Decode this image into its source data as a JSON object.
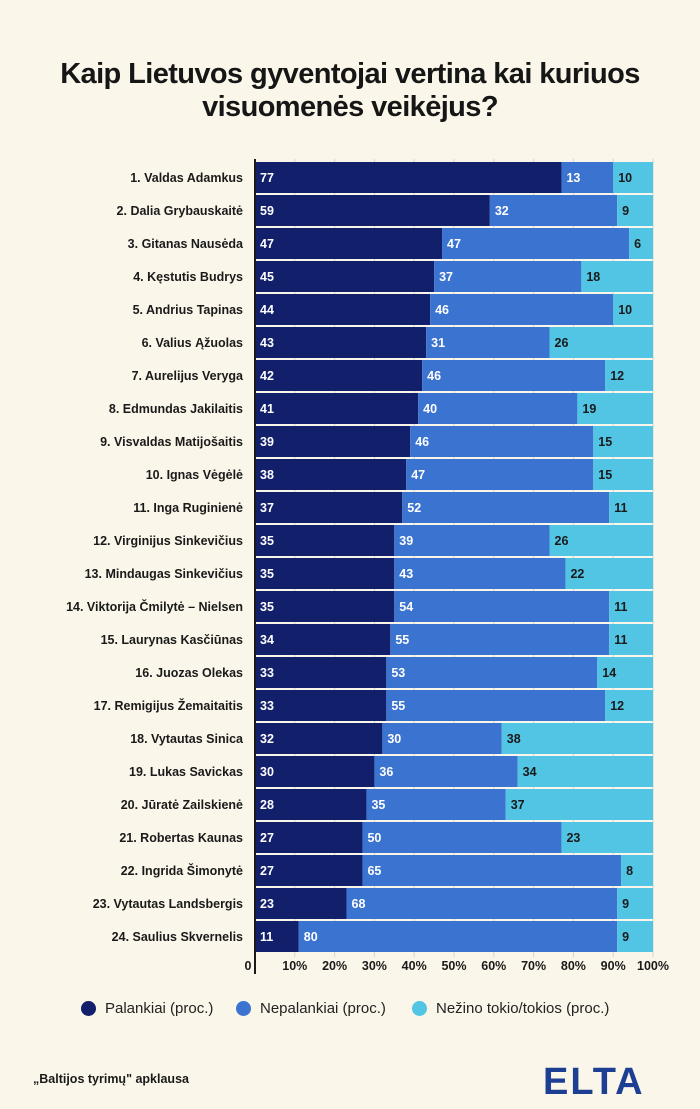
{
  "title_lines": [
    "Kaip Lietuvos gyventojai vertina kai kuriuos",
    "visuomenės veikėjus?"
  ],
  "chart_data": {
    "type": "bar",
    "orientation": "horizontal",
    "stacked": true,
    "percent_axis": true,
    "categories": [
      "1. Valdas Adamkus",
      "2. Dalia Grybauskaitė",
      "3. Gitanas Nausėda",
      "4. Kęstutis Budrys",
      "5. Andrius Tapinas",
      "6. Valius Ąžuolas",
      "7. Aurelijus Veryga",
      "8. Edmundas Jakilaitis",
      "9. Visvaldas Matijošaitis",
      "10. Ignas Vėgėlė",
      "11. Inga Ruginienė",
      "12. Virginijus Sinkevičius",
      "13. Mindaugas Sinkevičius",
      "14. Viktorija Čmilytė – Nielsen",
      "15. Laurynas Kasčiūnas",
      "16. Juozas Olekas",
      "17. Remigijus Žemaitaitis",
      "18. Vytautas Sinica",
      "19. Lukas Savickas",
      "20. Jūratė Zailskienė",
      "21. Robertas Kaunas",
      "22. Ingrida Šimonytė",
      "23. Vytautas Landsbergis",
      "24. Saulius Skvernelis"
    ],
    "series": [
      {
        "name": "Palankiai (proc.)",
        "color": "#121f6b",
        "values": [
          77,
          59,
          47,
          45,
          44,
          43,
          42,
          41,
          39,
          38,
          37,
          35,
          35,
          35,
          34,
          33,
          33,
          32,
          30,
          28,
          27,
          27,
          23,
          11
        ]
      },
      {
        "name": "Nepalankiai (proc.)",
        "color": "#3b73d1",
        "values": [
          13,
          32,
          47,
          37,
          46,
          31,
          46,
          40,
          46,
          47,
          52,
          39,
          43,
          54,
          55,
          53,
          55,
          30,
          36,
          35,
          50,
          65,
          68,
          80
        ]
      },
      {
        "name": "Nežino tokio/tokios (proc.)",
        "color": "#52c4e4",
        "values": [
          10,
          9,
          6,
          18,
          10,
          26,
          12,
          19,
          15,
          15,
          11,
          26,
          22,
          11,
          11,
          14,
          12,
          38,
          34,
          37,
          23,
          8,
          9,
          9
        ]
      }
    ],
    "x_ticks": [
      "0",
      "10%",
      "20%",
      "30%",
      "40%",
      "50%",
      "60%",
      "70%",
      "80%",
      "90%",
      "100%"
    ],
    "xlim": [
      0,
      100
    ],
    "grid": true,
    "legend_position": "bottom"
  },
  "source": "„Baltijos tyrimų\" apklausa",
  "logo": "ELTA",
  "colors": {
    "background": "#fbf6ea",
    "logo": "#1c3f94"
  }
}
